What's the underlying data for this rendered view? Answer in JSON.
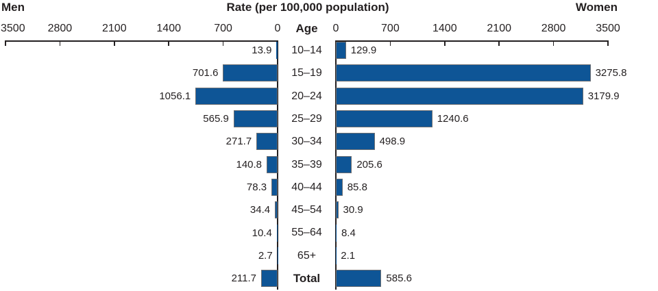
{
  "header": {
    "left_label": "Men",
    "title": "Rate (per 100,000 population)",
    "right_label": "Women"
  },
  "axis": {
    "age_header": "Age",
    "left_ticks": [
      3500,
      2800,
      2100,
      1400,
      700,
      0
    ],
    "right_ticks": [
      0,
      700,
      1400,
      2100,
      2800,
      3500
    ]
  },
  "colors": {
    "bar_fill": "#0e5596",
    "bar_border": "#6d6e71",
    "text": "#231f20",
    "axis_line": "#231f20"
  },
  "chart_data": {
    "type": "bar",
    "subtype": "horizontal-pyramid",
    "title": "Rate (per 100,000 population)",
    "xlabel": "Rate (per 100,000 population)",
    "ylabel": "Age",
    "xlim": [
      0,
      3500
    ],
    "axis_ticks": [
      0,
      700,
      1400,
      2100,
      2800,
      3500
    ],
    "grid": false,
    "legend_position": "top-corners",
    "categories": [
      "10–14",
      "15–19",
      "20–24",
      "25–29",
      "30–34",
      "35–39",
      "40–44",
      "45–54",
      "55–64",
      "65+",
      "Total"
    ],
    "series": [
      {
        "name": "Men",
        "side": "left",
        "values": [
          13.9,
          701.6,
          1056.1,
          565.9,
          271.7,
          140.8,
          78.3,
          34.4,
          10.4,
          2.7,
          211.7
        ]
      },
      {
        "name": "Women",
        "side": "right",
        "values": [
          129.9,
          3275.8,
          3179.9,
          1240.6,
          498.9,
          205.6,
          85.8,
          30.9,
          8.4,
          2.1,
          585.6
        ]
      }
    ]
  }
}
